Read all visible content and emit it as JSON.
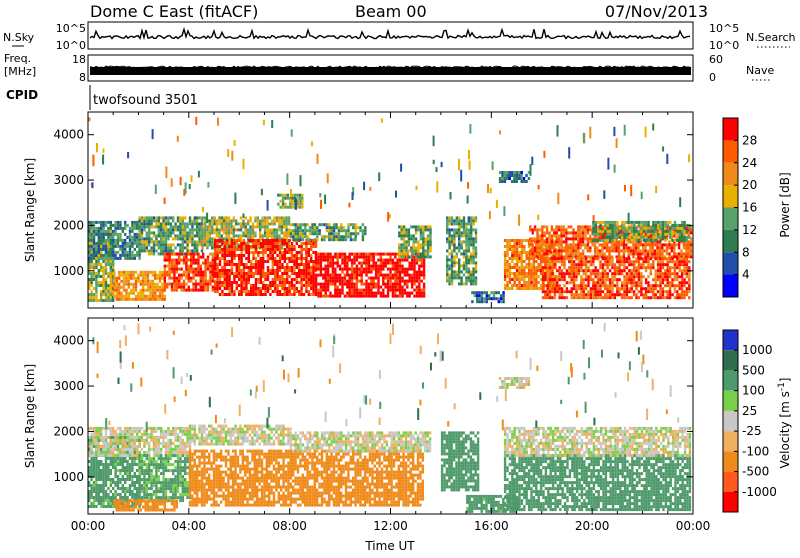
{
  "header": {
    "station": "Dome C East (fitACF)",
    "beam": "Beam 00",
    "date": "07/Nov/2013"
  },
  "panels": {
    "noise": {
      "left_label": "N.Sky",
      "right_label": "N.Search",
      "left_ticks": [
        "10^5",
        "10^0"
      ],
      "right_ticks": [
        "10^5",
        "10^0"
      ]
    },
    "freq": {
      "left_label_1": "Freq.",
      "left_label_2": "[MHz]",
      "right_label": "Nave",
      "left_ticks": [
        "18",
        "8"
      ],
      "right_ticks": [
        "60",
        "0"
      ]
    },
    "cpid": {
      "label": "CPID",
      "program": "twofsound 3501"
    }
  },
  "colors": {
    "power_scale": [
      "#0000ff",
      "#1f4fa8",
      "#2e7d52",
      "#57a26a",
      "#e8b000",
      "#f08a1a",
      "#ff5a00",
      "#ff0000"
    ],
    "velocity_scale": [
      "#2233cc",
      "#2e6e4e",
      "#4f9a6a",
      "#7ad04a",
      "#c8c8c8",
      "#f0b060",
      "#f08a1a",
      "#ff5a1a",
      "#ff0000"
    ]
  },
  "chart_data": [
    {
      "type": "heatmap",
      "title": "",
      "xlabel": "",
      "ylabel": "Slant Range [km]",
      "xlim": [
        0,
        24
      ],
      "ylim": [
        180,
        4500
      ],
      "x_ticks": [
        0,
        4,
        8,
        12,
        16,
        20,
        24
      ],
      "y_ticks": [
        1000,
        2000,
        3000,
        4000
      ],
      "colorbar": {
        "label": "Power [dB]",
        "ticks": [
          4,
          8,
          12,
          16,
          20,
          24,
          28
        ],
        "range": [
          0,
          30
        ]
      },
      "regions": [
        {
          "t0": 0.0,
          "t1": 1.0,
          "r0": 350,
          "r1": 1900,
          "value": 14
        },
        {
          "t0": 0.0,
          "t1": 2.0,
          "r0": 1300,
          "r1": 2100,
          "value": 10
        },
        {
          "t0": 1.0,
          "t1": 3.0,
          "r0": 400,
          "r1": 1000,
          "value": 20
        },
        {
          "t0": 2.0,
          "t1": 4.5,
          "r0": 1350,
          "r1": 2200,
          "value": 12
        },
        {
          "t0": 3.0,
          "t1": 5.0,
          "r0": 600,
          "r1": 1400,
          "value": 26
        },
        {
          "t0": 4.5,
          "t1": 8.0,
          "r0": 1500,
          "r1": 2200,
          "value": 15
        },
        {
          "t0": 5.0,
          "t1": 9.0,
          "r0": 450,
          "r1": 1700,
          "value": 27
        },
        {
          "t0": 8.0,
          "t1": 11.0,
          "r0": 1700,
          "r1": 2050,
          "value": 12
        },
        {
          "t0": 9.0,
          "t1": 13.3,
          "r0": 450,
          "r1": 1400,
          "value": 29
        },
        {
          "t0": 12.3,
          "t1": 13.6,
          "r0": 1300,
          "r1": 2000,
          "value": 13
        },
        {
          "t0": 14.2,
          "t1": 15.4,
          "r0": 700,
          "r1": 2200,
          "value": 12
        },
        {
          "t0": 15.2,
          "t1": 16.5,
          "r0": 300,
          "r1": 550,
          "value": 8
        },
        {
          "t0": 16.5,
          "t1": 18.5,
          "r0": 600,
          "r1": 1700,
          "value": 22
        },
        {
          "t0": 17.5,
          "t1": 23.9,
          "r0": 1300,
          "r1": 2000,
          "value": 24
        },
        {
          "t0": 18.0,
          "t1": 23.9,
          "r0": 400,
          "r1": 1300,
          "value": 25
        },
        {
          "t0": 20.0,
          "t1": 23.9,
          "r0": 1700,
          "r1": 2100,
          "value": 13
        },
        {
          "t0": 16.3,
          "t1": 17.5,
          "r0": 3000,
          "r1": 3200,
          "value": 8
        },
        {
          "t0": 7.5,
          "t1": 8.5,
          "r0": 2400,
          "r1": 2700,
          "value": 14
        }
      ]
    },
    {
      "type": "heatmap",
      "title": "",
      "xlabel": "Time UT",
      "ylabel": "Slant Range [km]",
      "xlim": [
        0,
        24
      ],
      "ylim": [
        180,
        4500
      ],
      "x_ticks": [
        0,
        4,
        8,
        12,
        16,
        20,
        24
      ],
      "x_tick_labels": [
        "00:00",
        "04:00",
        "08:00",
        "12:00",
        "16:00",
        "20:00",
        "00:00"
      ],
      "y_ticks": [
        1000,
        2000,
        3000,
        4000
      ],
      "colorbar": {
        "label": "Velocity [m s^-1]",
        "ticks": [
          "1000",
          "500",
          "100",
          "25",
          "-25",
          "-100",
          "-500",
          "-1000"
        ]
      },
      "regions": [
        {
          "t0": 0.0,
          "t1": 2.0,
          "r0": 350,
          "r1": 1900,
          "value": 150
        },
        {
          "t0": 0.0,
          "t1": 4.0,
          "r0": 1500,
          "r1": 2100,
          "value": 0
        },
        {
          "t0": 2.0,
          "t1": 4.0,
          "r0": 500,
          "r1": 1500,
          "value": 120
        },
        {
          "t0": 1.0,
          "t1": 3.5,
          "r0": 250,
          "r1": 500,
          "value": -200
        },
        {
          "t0": 4.0,
          "t1": 8.0,
          "r0": 1700,
          "r1": 2150,
          "value": 0
        },
        {
          "t0": 4.0,
          "t1": 13.3,
          "r0": 400,
          "r1": 1600,
          "value": -300
        },
        {
          "t0": 8.0,
          "t1": 13.6,
          "r0": 1600,
          "r1": 2000,
          "value": 0
        },
        {
          "t0": 14.0,
          "t1": 15.5,
          "r0": 700,
          "r1": 2000,
          "value": 200
        },
        {
          "t0": 15.0,
          "t1": 17.0,
          "r0": 250,
          "r1": 600,
          "value": 150
        },
        {
          "t0": 16.5,
          "t1": 23.9,
          "r0": 300,
          "r1": 1500,
          "value": 300
        },
        {
          "t0": 16.5,
          "t1": 23.9,
          "r0": 1500,
          "r1": 2100,
          "value": 0
        },
        {
          "t0": 16.3,
          "t1": 17.5,
          "r0": 3000,
          "r1": 3200,
          "value": 0
        }
      ]
    }
  ]
}
